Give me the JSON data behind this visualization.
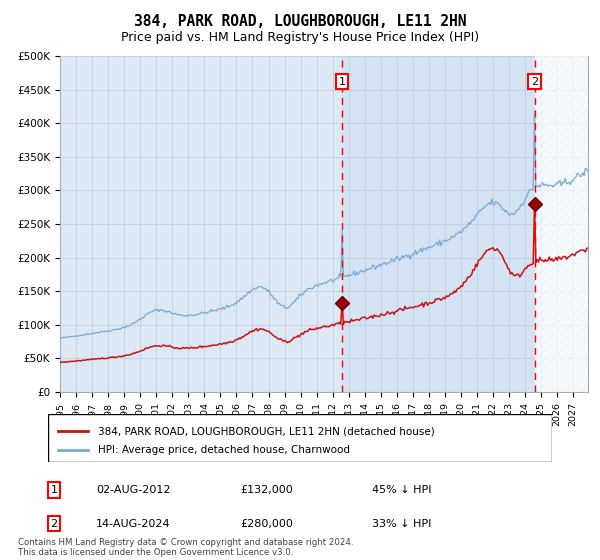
{
  "title": "384, PARK ROAD, LOUGHBOROUGH, LE11 2HN",
  "subtitle": "Price paid vs. HM Land Registry's House Price Index (HPI)",
  "ylim": [
    0,
    500000
  ],
  "yticks": [
    0,
    50000,
    100000,
    150000,
    200000,
    250000,
    300000,
    350000,
    400000,
    450000,
    500000
  ],
  "ytick_labels": [
    "£0",
    "£50K",
    "£100K",
    "£150K",
    "£200K",
    "£250K",
    "£300K",
    "£350K",
    "£400K",
    "£450K",
    "£500K"
  ],
  "hpi_color": "#7ba7d4",
  "price_color": "#cc1111",
  "bg_color": "#dce9f5",
  "grid_color": "#c0d0e0",
  "legend_line1": "384, PARK ROAD, LOUGHBOROUGH, LE11 2HN (detached house)",
  "legend_line2": "HPI: Average price, detached house, Charnwood",
  "table_row1_num": "1",
  "table_row1_date": "02-AUG-2012",
  "table_row1_price": "£132,000",
  "table_row1_hpi": "45% ↓ HPI",
  "table_row2_num": "2",
  "table_row2_date": "14-AUG-2024",
  "table_row2_price": "£280,000",
  "table_row2_hpi": "33% ↓ HPI",
  "footer": "Contains HM Land Registry data © Crown copyright and database right 2024.\nThis data is licensed under the Open Government Licence v3.0.",
  "title_fontsize": 10.5,
  "subtitle_fontsize": 9,
  "start_year": 1995,
  "end_year": 2027
}
